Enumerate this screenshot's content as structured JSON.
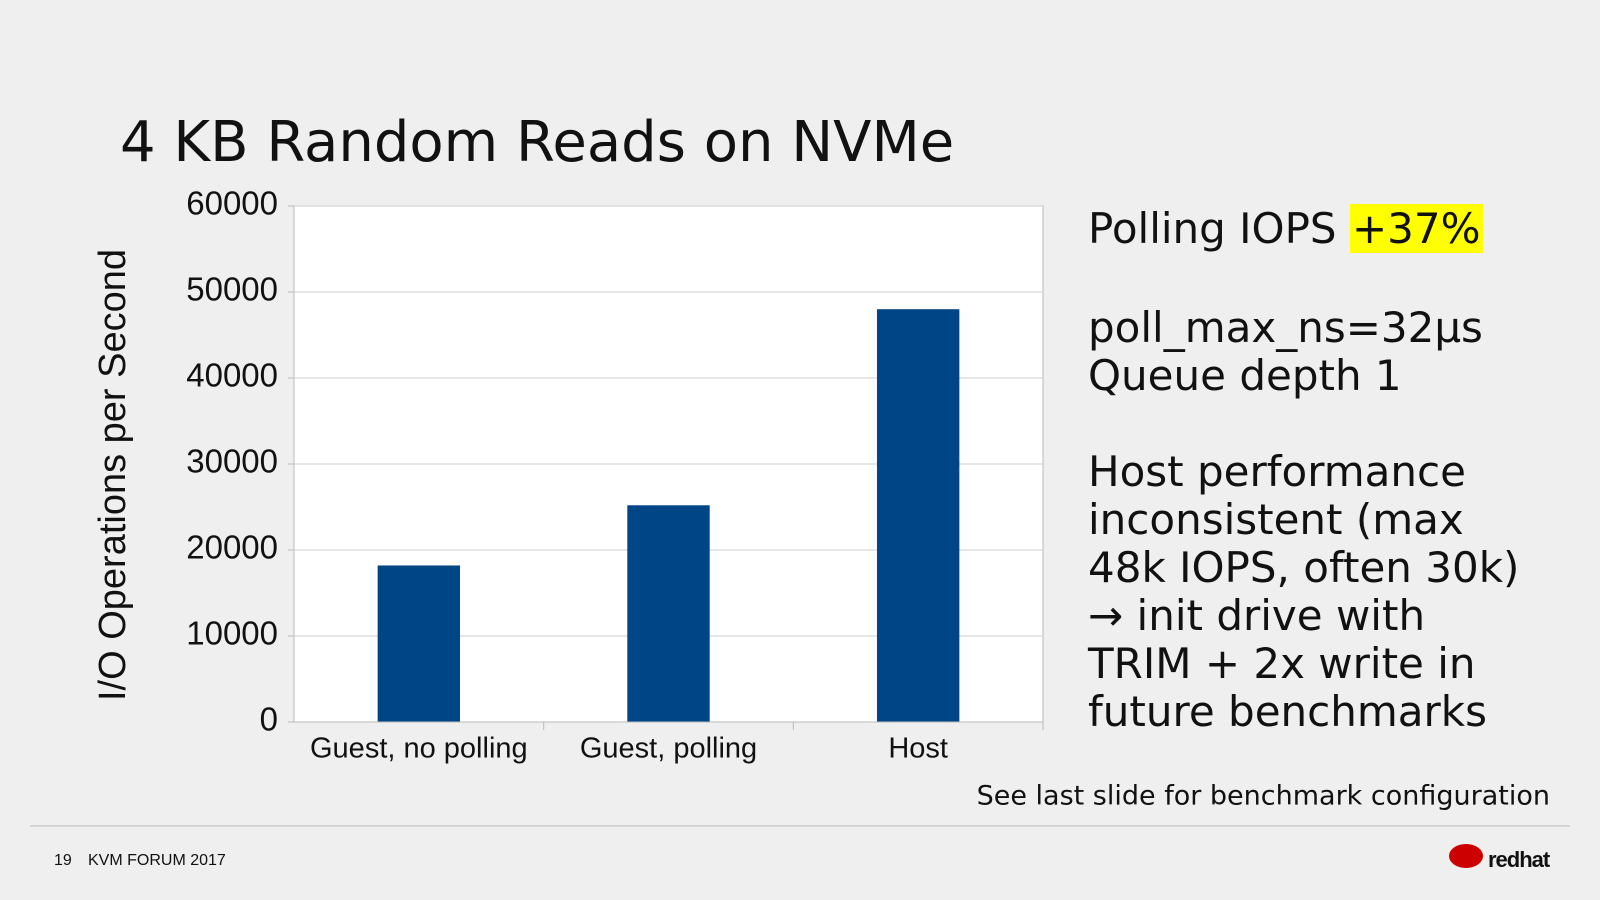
{
  "chart_data": {
    "type": "bar",
    "title": "4 KB Random Reads on NVMe",
    "ylabel": "I/O Operations per Second",
    "categories": [
      "Guest, no polling",
      "Guest, polling",
      "Host"
    ],
    "values": [
      18200,
      25200,
      48000
    ],
    "color": "#004586",
    "ylim": [
      0,
      60000
    ],
    "yticks": [
      0,
      10000,
      20000,
      30000,
      40000,
      50000,
      60000
    ],
    "grid": true
  },
  "notes": {
    "polling": "Polling IOPS",
    "gain": "+37%",
    "params": [
      "poll_max_ns=32μs",
      "Queue depth 1"
    ],
    "host": [
      "Host performance",
      "inconsistent (max",
      "48k IOPS, often 30k)",
      "→ init drive with",
      "TRIM + 2x write in",
      "future benchmarks"
    ]
  },
  "footnote": "See last slide for benchmark configuration",
  "footer": {
    "page": "19",
    "event": "KVM FORUM 2017",
    "logo": "redhat"
  }
}
